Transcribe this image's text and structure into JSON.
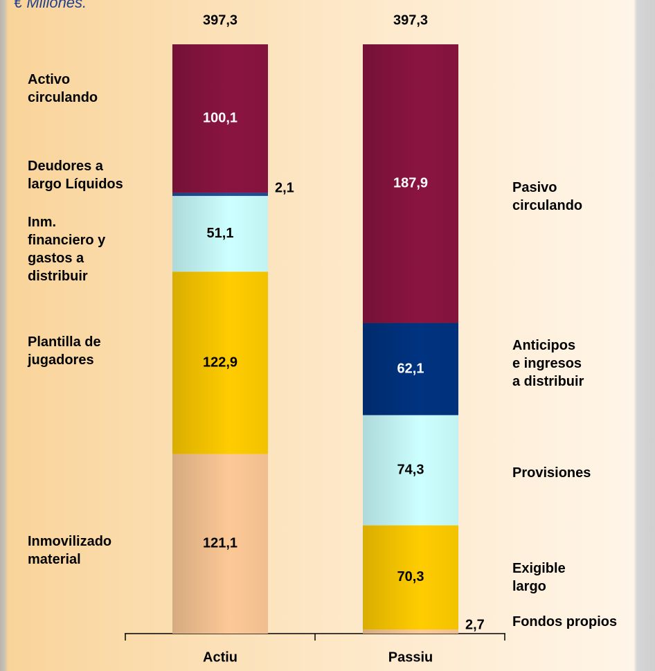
{
  "chart_data": {
    "type": "stacked_bar",
    "subtitle": "€ Millones.",
    "categories": [
      "Actiu",
      "Passiu"
    ],
    "totals": [
      397.3,
      397.3
    ],
    "total_labels": [
      "397,3",
      "397,3"
    ],
    "bars": [
      {
        "segments": [
          {
            "name": "Inmovilizado\nmaterial",
            "value": 121.1,
            "value_label": "121,1",
            "color": "#fcc896"
          },
          {
            "name": "Plantilla de\njugadores",
            "value": 122.9,
            "value_label": "122,9",
            "color": "#ffcc00"
          },
          {
            "name": "Inm.\nfinanciero y\ngastos a\ndistribuir",
            "value": 51.1,
            "value_label": "51,1",
            "color": "#ccffff"
          },
          {
            "name": "Deudores a\nlargo Líquidos",
            "value": 2.1,
            "value_label": "2,1",
            "color": "#1f4e99"
          },
          {
            "name": "Activo\ncirculando",
            "value": 100.1,
            "value_label": "100,1",
            "color": "#8a1440"
          }
        ]
      },
      {
        "segments": [
          {
            "name": "Fondos propios",
            "value": 2.7,
            "value_label": "2,7",
            "color": "#fcc896"
          },
          {
            "name": "Exigible\nlargo",
            "value": 70.3,
            "value_label": "70,3",
            "color": "#ffcc00"
          },
          {
            "name": "Provisiones",
            "value": 74.3,
            "value_label": "74,3",
            "color": "#ccffff"
          },
          {
            "name": "Anticipos\ne ingresos\na distribuir",
            "value": 62.1,
            "value_label": "62,1",
            "color": "#003380"
          },
          {
            "name": "Pasivo\ncirculando",
            "value": 187.9,
            "value_label": "187,9",
            "color": "#8a1440"
          }
        ]
      }
    ]
  }
}
